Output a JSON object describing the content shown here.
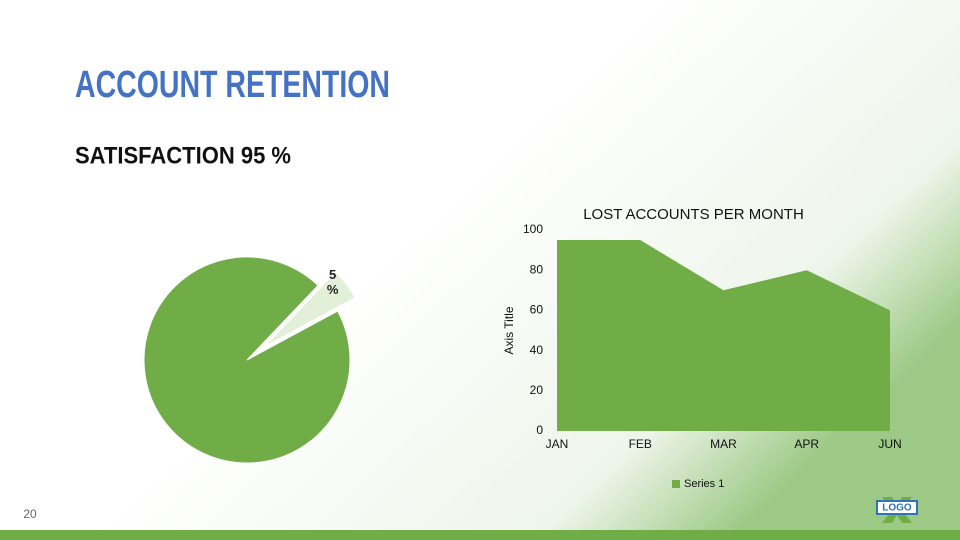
{
  "header": {
    "title": "ACCOUNT RETENTION",
    "subtitle": "SATISFACTION 95 %"
  },
  "footer": {
    "page_number": "20",
    "logo": "LOGO"
  },
  "chart_data": [
    {
      "type": "pie",
      "values": [
        95,
        5
      ],
      "value_labels": [
        null,
        "5 %"
      ],
      "colors": [
        "#70ad47",
        "#e2efd9"
      ]
    },
    {
      "type": "area",
      "title": "LOST ACCOUNTS PER MONTH",
      "y_label": "Axis Title",
      "categories": [
        "JAN",
        "FEB",
        "MAR",
        "APR",
        "JUN"
      ],
      "series": [
        {
          "name": "Series 1",
          "color": "#70ad47",
          "values": [
            95,
            95,
            70,
            80,
            60
          ]
        }
      ],
      "ylim": [
        0,
        100
      ],
      "yticks": [
        0,
        20,
        40,
        60,
        80,
        100
      ],
      "legend": "bottom"
    }
  ]
}
